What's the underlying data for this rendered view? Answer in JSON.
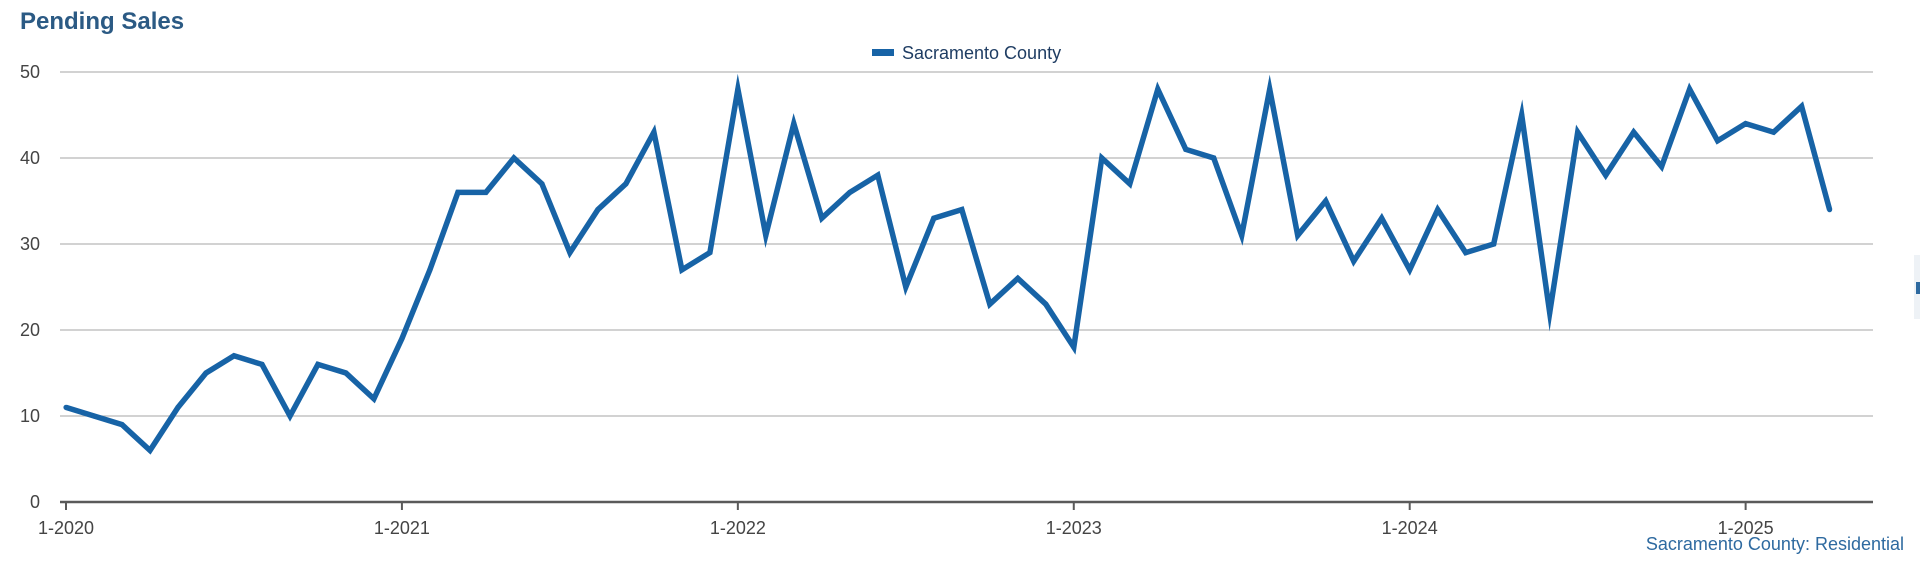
{
  "page_title": "Pending Sales",
  "footer_note": "Sacramento County: Residential",
  "colors": {
    "series": "#1763a6",
    "title": "#2b5a84",
    "grid": "#b8b8b8",
    "axis": "#5a5a5a"
  },
  "chart_data": {
    "type": "line",
    "title": "Pending Sales",
    "xlabel": "",
    "ylabel": "",
    "ylim": [
      0,
      50
    ],
    "yticks": [
      0,
      10,
      20,
      30,
      40,
      50
    ],
    "xticks": [
      "1-2020",
      "1-2021",
      "1-2022",
      "1-2023",
      "1-2024",
      "1-2025"
    ],
    "grid": true,
    "legend_position": "top-center",
    "x": [
      "1-2020",
      "2-2020",
      "3-2020",
      "4-2020",
      "5-2020",
      "6-2020",
      "7-2020",
      "8-2020",
      "9-2020",
      "10-2020",
      "11-2020",
      "12-2020",
      "1-2021",
      "2-2021",
      "3-2021",
      "4-2021",
      "5-2021",
      "6-2021",
      "7-2021",
      "8-2021",
      "9-2021",
      "10-2021",
      "11-2021",
      "12-2021",
      "1-2022",
      "2-2022",
      "3-2022",
      "4-2022",
      "5-2022",
      "6-2022",
      "7-2022",
      "8-2022",
      "9-2022",
      "10-2022",
      "11-2022",
      "12-2022",
      "1-2023",
      "2-2023",
      "3-2023",
      "4-2023",
      "5-2023",
      "6-2023",
      "7-2023",
      "8-2023",
      "9-2023",
      "10-2023",
      "11-2023",
      "12-2023",
      "1-2024",
      "2-2024",
      "3-2024",
      "4-2024",
      "5-2024",
      "6-2024",
      "7-2024",
      "8-2024",
      "9-2024",
      "10-2024",
      "11-2024",
      "12-2024",
      "1-2025",
      "2-2025",
      "3-2025",
      "4-2025"
    ],
    "series": [
      {
        "name": "Sacramento County",
        "values": [
          11,
          10,
          9,
          6,
          11,
          15,
          17,
          16,
          10,
          16,
          15,
          12,
          19,
          27,
          36,
          36,
          40,
          37,
          29,
          34,
          37,
          43,
          27,
          29,
          48,
          31,
          44,
          33,
          36,
          38,
          25,
          33,
          34,
          23,
          26,
          23,
          18,
          40,
          37,
          48,
          41,
          40,
          31,
          48,
          31,
          35,
          28,
          33,
          27,
          34,
          29,
          30,
          45,
          22,
          43,
          38,
          43,
          39,
          48,
          42,
          44,
          43,
          46,
          34
        ]
      }
    ]
  }
}
